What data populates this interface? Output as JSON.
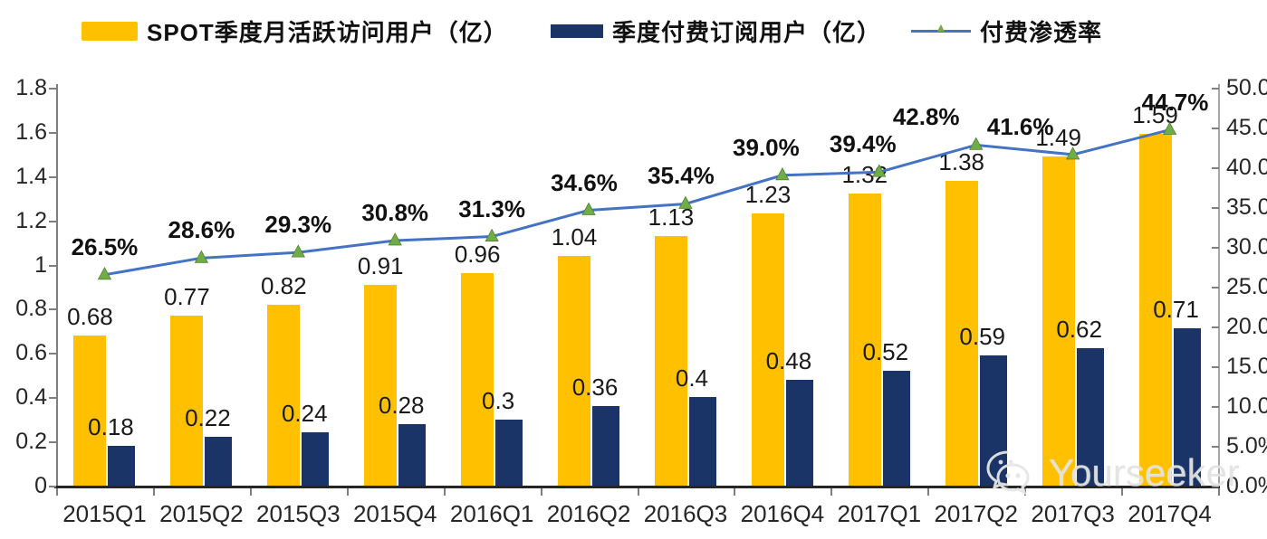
{
  "legend": [
    {
      "label": "SPOT季度月活跃访问用户（亿）",
      "color": "#FFC000"
    },
    {
      "label": "季度付费订阅用户（亿）",
      "color": "#1B3467"
    },
    {
      "label": "付费渗透率",
      "color": "#4472C4",
      "marker_color": "#70AD47"
    }
  ],
  "chart_data": {
    "type": "bar",
    "subtype": "grouped-bars-with-line",
    "categories": [
      "2015Q1",
      "2015Q2",
      "2015Q3",
      "2015Q4",
      "2016Q1",
      "2016Q2",
      "2016Q3",
      "2016Q4",
      "2017Q1",
      "2017Q2",
      "2017Q3",
      "2017Q4"
    ],
    "series": [
      {
        "name": "SPOT季度月活跃访问用户（亿）",
        "type": "bar",
        "axis": "left",
        "color": "#FFC000",
        "values": [
          0.68,
          0.77,
          0.82,
          0.91,
          0.96,
          1.04,
          1.13,
          1.23,
          1.32,
          1.38,
          1.49,
          1.59
        ],
        "labels": [
          "0.68",
          "0.77",
          "0.82",
          "0.91",
          "0.96",
          "1.04",
          "1.13",
          "1.23",
          "1.32",
          "1.38",
          "1.49",
          "1.59"
        ]
      },
      {
        "name": "季度付费订阅用户（亿）",
        "type": "bar",
        "axis": "left",
        "color": "#1B3467",
        "values": [
          0.18,
          0.22,
          0.24,
          0.28,
          0.3,
          0.36,
          0.4,
          0.48,
          0.52,
          0.59,
          0.62,
          0.71
        ],
        "labels": [
          "0.18",
          "0.22",
          "0.24",
          "0.28",
          "0.3",
          "0.36",
          "0.4",
          "0.48",
          "0.52",
          "0.59",
          "0.62",
          "0.71"
        ]
      },
      {
        "name": "付费渗透率",
        "type": "line",
        "axis": "right",
        "color": "#4472C4",
        "marker": "triangle",
        "marker_color": "#70AD47",
        "values": [
          26.5,
          28.6,
          29.3,
          30.8,
          31.3,
          34.6,
          35.4,
          39.0,
          39.4,
          42.8,
          41.6,
          44.7
        ],
        "labels": [
          "26.5%",
          "28.6%",
          "29.3%",
          "30.8%",
          "31.3%",
          "34.6%",
          "35.4%",
          "39.0%",
          "39.4%",
          "42.8%",
          "41.6%",
          "44.7%"
        ]
      }
    ],
    "title": "",
    "xlabel": "",
    "ylabel_left": "",
    "ylabel_right": "",
    "left_axis": {
      "min": 0,
      "max": 1.8,
      "step": 0.2,
      "tick_labels": [
        "1.8",
        "1.6",
        "1.4",
        "1.2",
        "1",
        "0.8",
        "0.6",
        "0.4",
        "0.2",
        "0"
      ]
    },
    "right_axis": {
      "min": 0,
      "max": 50,
      "step": 5,
      "tick_labels": [
        "50.0%",
        "45.0%",
        "40.0%",
        "35.0%",
        "30.0%",
        "25.0%",
        "20.0%",
        "15.0%",
        "10.0%",
        "5.0%",
        "0.0%"
      ]
    },
    "grid": false,
    "legend_position": "top"
  },
  "watermark": {
    "text": "Yourseeker",
    "icon": "wechat-icon"
  }
}
